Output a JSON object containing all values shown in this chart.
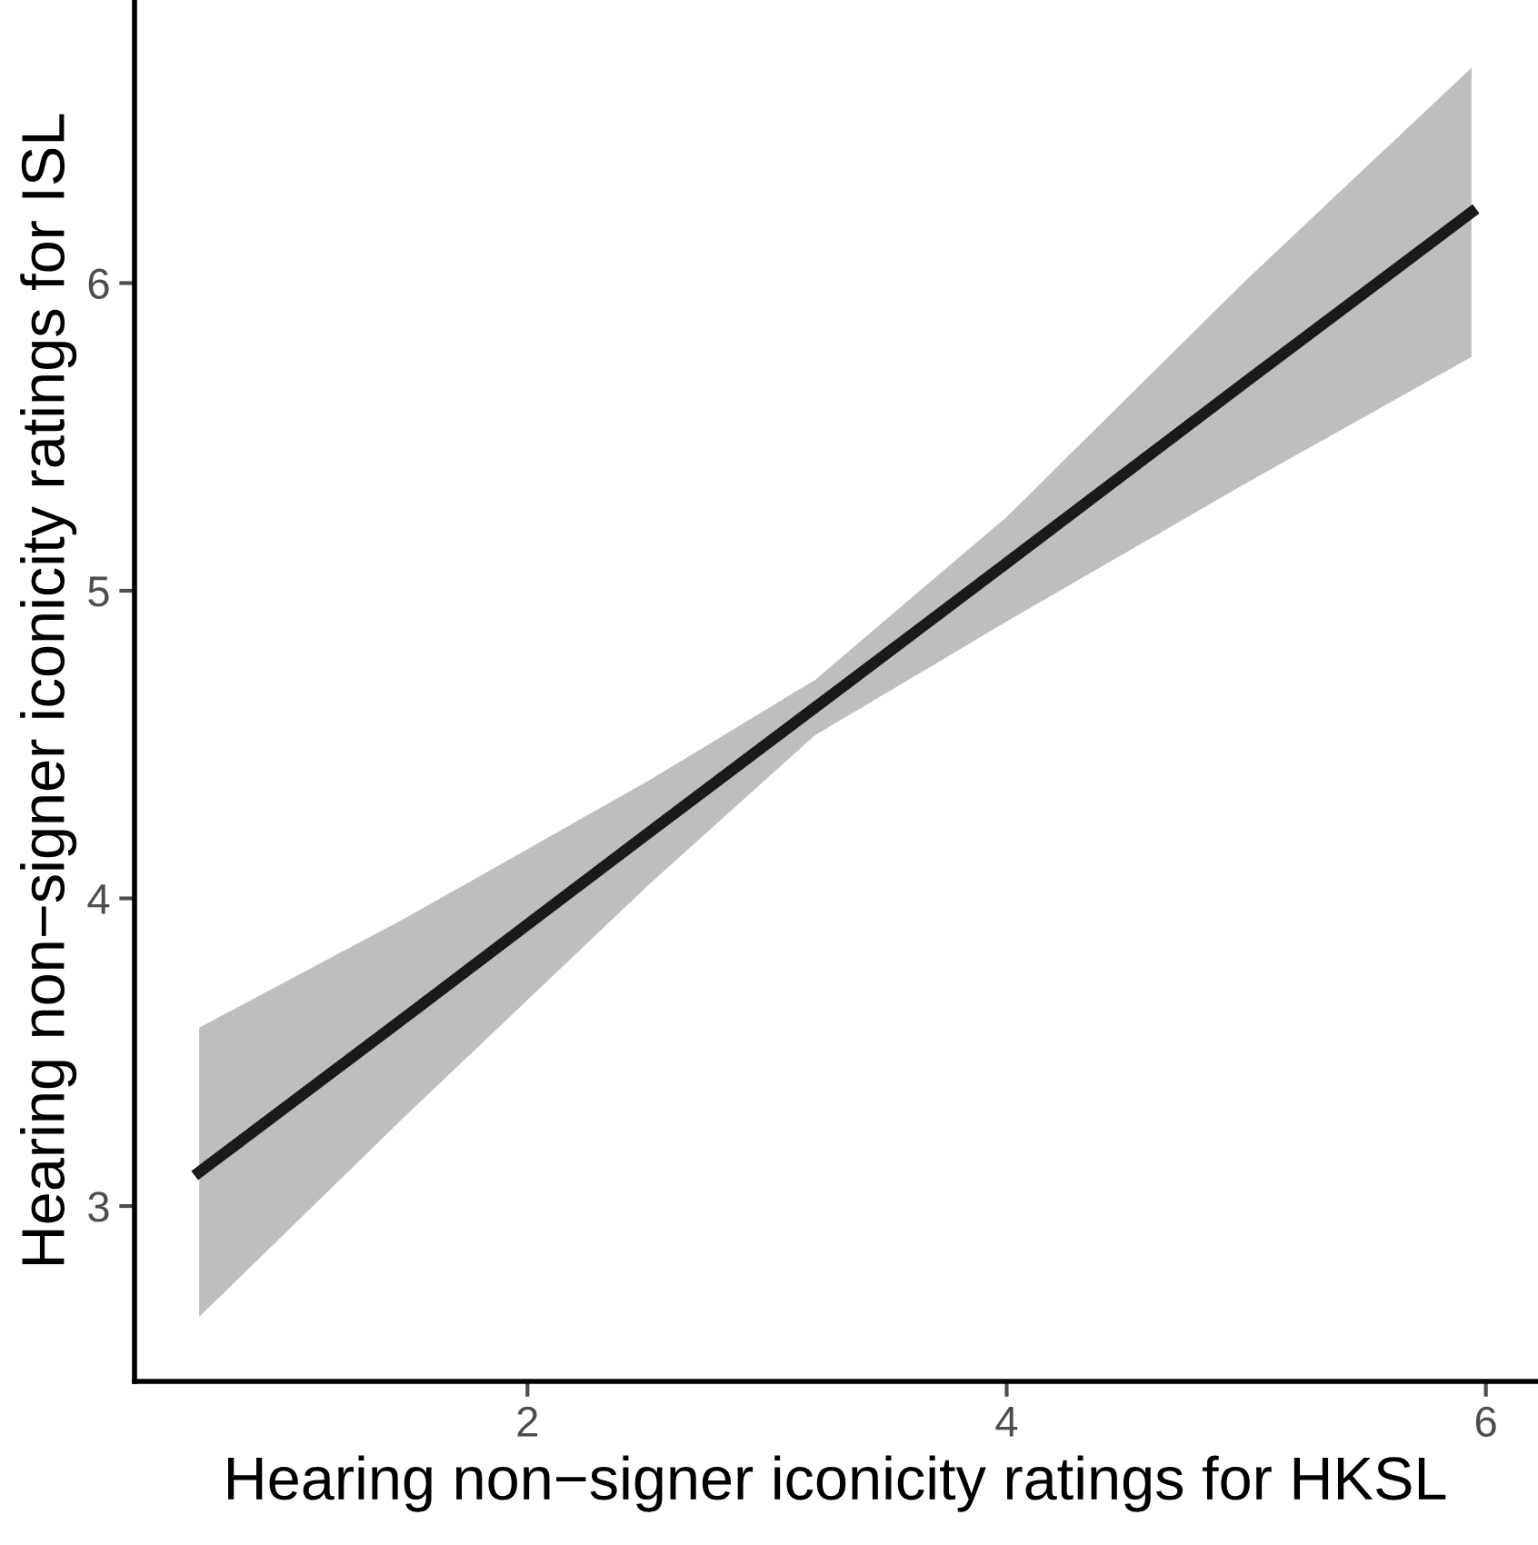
{
  "chart_data": {
    "type": "line",
    "xlabel": "Hearing non−signer iconicity ratings for HKSL",
    "ylabel": "Hearing non−signer iconicity ratings for ISL",
    "x": [
      0.63,
      1.5,
      2.5,
      3.2,
      4,
      5,
      5.94
    ],
    "series": [
      {
        "color": "#1a1a1a",
        "values": [
          3.11,
          3.62,
          4.21,
          4.62,
          5.09,
          5.68,
          6.23
        ],
        "lower": [
          2.64,
          3.3,
          4.04,
          4.53,
          4.9,
          5.35,
          5.76
        ],
        "upper": [
          3.58,
          3.94,
          4.38,
          4.71,
          5.24,
          6.01,
          6.7
        ]
      }
    ],
    "xlim": [
      0.36,
      6.21
    ],
    "ylim": [
      2.43,
      6.92
    ],
    "xticks": [
      2,
      4,
      6
    ],
    "yticks": [
      3,
      4,
      5,
      6
    ],
    "grid": false,
    "legend": false,
    "marker": "none",
    "line_style": "solid"
  }
}
